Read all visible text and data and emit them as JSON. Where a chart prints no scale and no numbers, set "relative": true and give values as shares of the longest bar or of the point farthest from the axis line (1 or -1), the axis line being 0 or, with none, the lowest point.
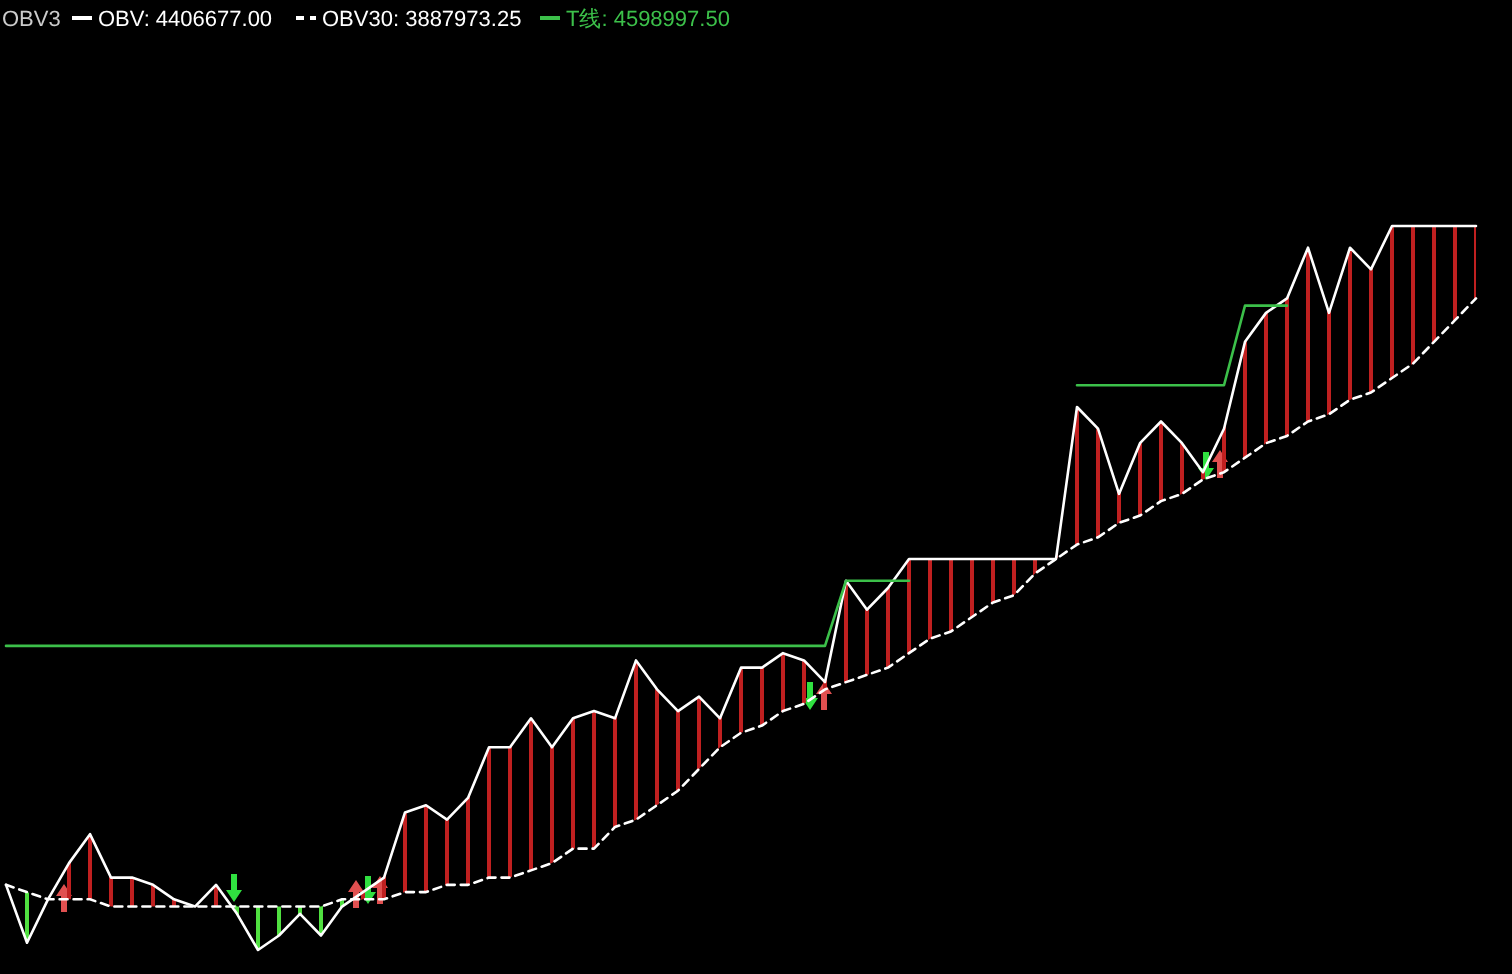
{
  "chart_data": {
    "type": "line",
    "title": "OBV3",
    "relative": true,
    "legend": "top left",
    "categories": [
      null,
      null,
      null,
      null,
      null,
      null,
      null,
      null,
      null,
      null,
      null,
      null,
      null,
      null,
      null,
      null,
      null,
      null,
      null,
      null,
      null,
      null,
      null,
      null,
      null,
      null,
      null,
      null,
      null,
      null,
      null,
      null,
      null,
      null,
      null,
      null,
      null,
      null,
      null,
      null,
      null,
      null,
      null,
      null,
      null,
      null,
      null,
      null,
      null,
      null,
      null,
      null,
      null,
      null,
      null,
      null,
      null,
      null,
      null,
      null,
      null,
      null,
      null,
      null,
      null,
      null,
      null,
      null,
      null,
      null,
      null
    ],
    "series": [
      {
        "name": "OBV: 4406677.00",
        "color": "#ffffff",
        "line_style": "solid",
        "values": [
          0.09,
          0.01,
          0.07,
          0.12,
          0.16,
          0.1,
          0.1,
          0.09,
          0.07,
          0.06,
          0.09,
          0.05,
          0,
          0.02,
          0.05,
          0.02,
          0.06,
          0.08,
          0.1,
          0.19,
          0.2,
          0.18,
          0.21,
          0.28,
          0.28,
          0.32,
          0.28,
          0.32,
          0.33,
          0.32,
          0.4,
          0.36,
          0.33,
          0.35,
          0.32,
          0.39,
          0.39,
          0.41,
          0.4,
          0.37,
          0.51,
          0.47,
          0.5,
          0.54,
          0.54,
          0.54,
          0.54,
          0.54,
          0.54,
          0.54,
          0.54,
          0.75,
          0.72,
          0.63,
          0.7,
          0.73,
          0.7,
          0.66,
          0.72,
          0.84,
          0.88,
          0.9,
          0.97,
          0.88,
          0.97,
          0.94,
          1,
          1,
          1,
          1,
          1
        ],
        "lower": [
          0.09,
          0.01,
          0.07,
          0.07,
          0.07,
          0.06,
          0.06,
          0.06,
          0.06,
          0.06,
          0.06,
          0.05,
          0,
          0.02,
          0.05,
          0.02,
          0.06,
          0.07,
          0.07,
          0.08,
          0.08,
          0.09,
          0.09,
          0.1,
          0.1,
          0.11,
          0.12,
          0.14,
          0.14,
          0.17,
          0.18,
          0.2,
          0.22,
          0.25,
          0.28,
          0.3,
          0.31,
          0.33,
          0.34,
          0.36,
          0.37,
          0.38,
          0.39,
          0.41,
          0.43,
          0.44,
          0.46,
          0.48,
          0.49,
          0.52,
          0.54,
          0.56,
          0.57,
          0.59,
          0.6,
          0.62,
          0.63,
          0.65,
          0.66,
          0.68,
          0.7,
          0.71,
          0.73,
          0.74,
          0.76,
          0.77,
          0.79,
          0.81,
          0.84,
          0.87,
          0.9
        ],
        "upper": [
          0.09,
          0.08,
          0.07,
          0.12,
          0.16,
          0.1,
          0.1,
          0.09,
          0.07,
          0.06,
          0.09,
          0.06,
          0.06,
          0.06,
          0.06,
          0.06,
          0.07,
          0.08,
          0.1,
          0.19,
          0.2,
          0.18,
          0.21,
          0.28,
          0.28,
          0.32,
          0.28,
          0.32,
          0.33,
          0.32,
          0.4,
          0.36,
          0.33,
          0.35,
          0.32,
          0.39,
          0.39,
          0.41,
          0.4,
          0.37,
          0.51,
          0.47,
          0.5,
          0.54,
          0.54,
          0.54,
          0.54,
          0.54,
          0.54,
          0.54,
          0.54,
          0.75,
          0.72,
          0.63,
          0.7,
          0.73,
          0.7,
          0.66,
          0.72,
          0.84,
          0.88,
          0.9,
          0.97,
          0.88,
          0.97,
          0.94,
          1,
          1,
          1,
          1,
          1
        ]
      },
      {
        "name": "OBV30: 3887973.25",
        "color": "#ffffff",
        "line_style": "dashed",
        "values": [
          0.09,
          0.08,
          0.07,
          0.07,
          0.07,
          0.06,
          0.06,
          0.06,
          0.06,
          0.06,
          0.06,
          0.06,
          0.06,
          0.06,
          0.06,
          0.06,
          0.07,
          0.07,
          0.07,
          0.08,
          0.08,
          0.09,
          0.09,
          0.1,
          0.1,
          0.11,
          0.12,
          0.14,
          0.14,
          0.17,
          0.18,
          0.2,
          0.22,
          0.25,
          0.28,
          0.3,
          0.31,
          0.33,
          0.34,
          0.36,
          0.37,
          0.38,
          0.39,
          0.41,
          0.43,
          0.44,
          0.46,
          0.48,
          0.49,
          0.52,
          0.54,
          0.56,
          0.57,
          0.59,
          0.6,
          0.62,
          0.63,
          0.65,
          0.66,
          0.68,
          0.7,
          0.71,
          0.73,
          0.74,
          0.76,
          0.77,
          0.79,
          0.81,
          0.84,
          0.87,
          0.9
        ]
      },
      {
        "name": "T线: 4598997.50",
        "color": "#3cc04a",
        "line_style": "solid",
        "values": [
          0.42,
          0.42,
          0.42,
          0.42,
          0.42,
          0.42,
          0.42,
          0.42,
          0.42,
          0.42,
          0.42,
          0.42,
          0.42,
          0.42,
          0.42,
          0.42,
          0.42,
          0.42,
          0.42,
          0.42,
          0.42,
          0.42,
          0.42,
          0.42,
          0.42,
          0.42,
          0.42,
          0.42,
          0.42,
          0.42,
          0.42,
          0.42,
          0.42,
          0.42,
          0.42,
          0.42,
          0.42,
          0.42,
          0.42,
          0.42,
          0.51,
          0.51,
          0.51,
          0.51,
          null,
          null,
          null,
          null,
          null,
          null,
          null,
          0.78,
          0.78,
          0.78,
          0.78,
          0.78,
          0.78,
          0.78,
          0.78,
          0.89,
          0.89,
          0.89,
          null,
          null,
          null,
          null,
          null,
          null,
          null,
          null,
          null
        ]
      }
    ]
  }
}
